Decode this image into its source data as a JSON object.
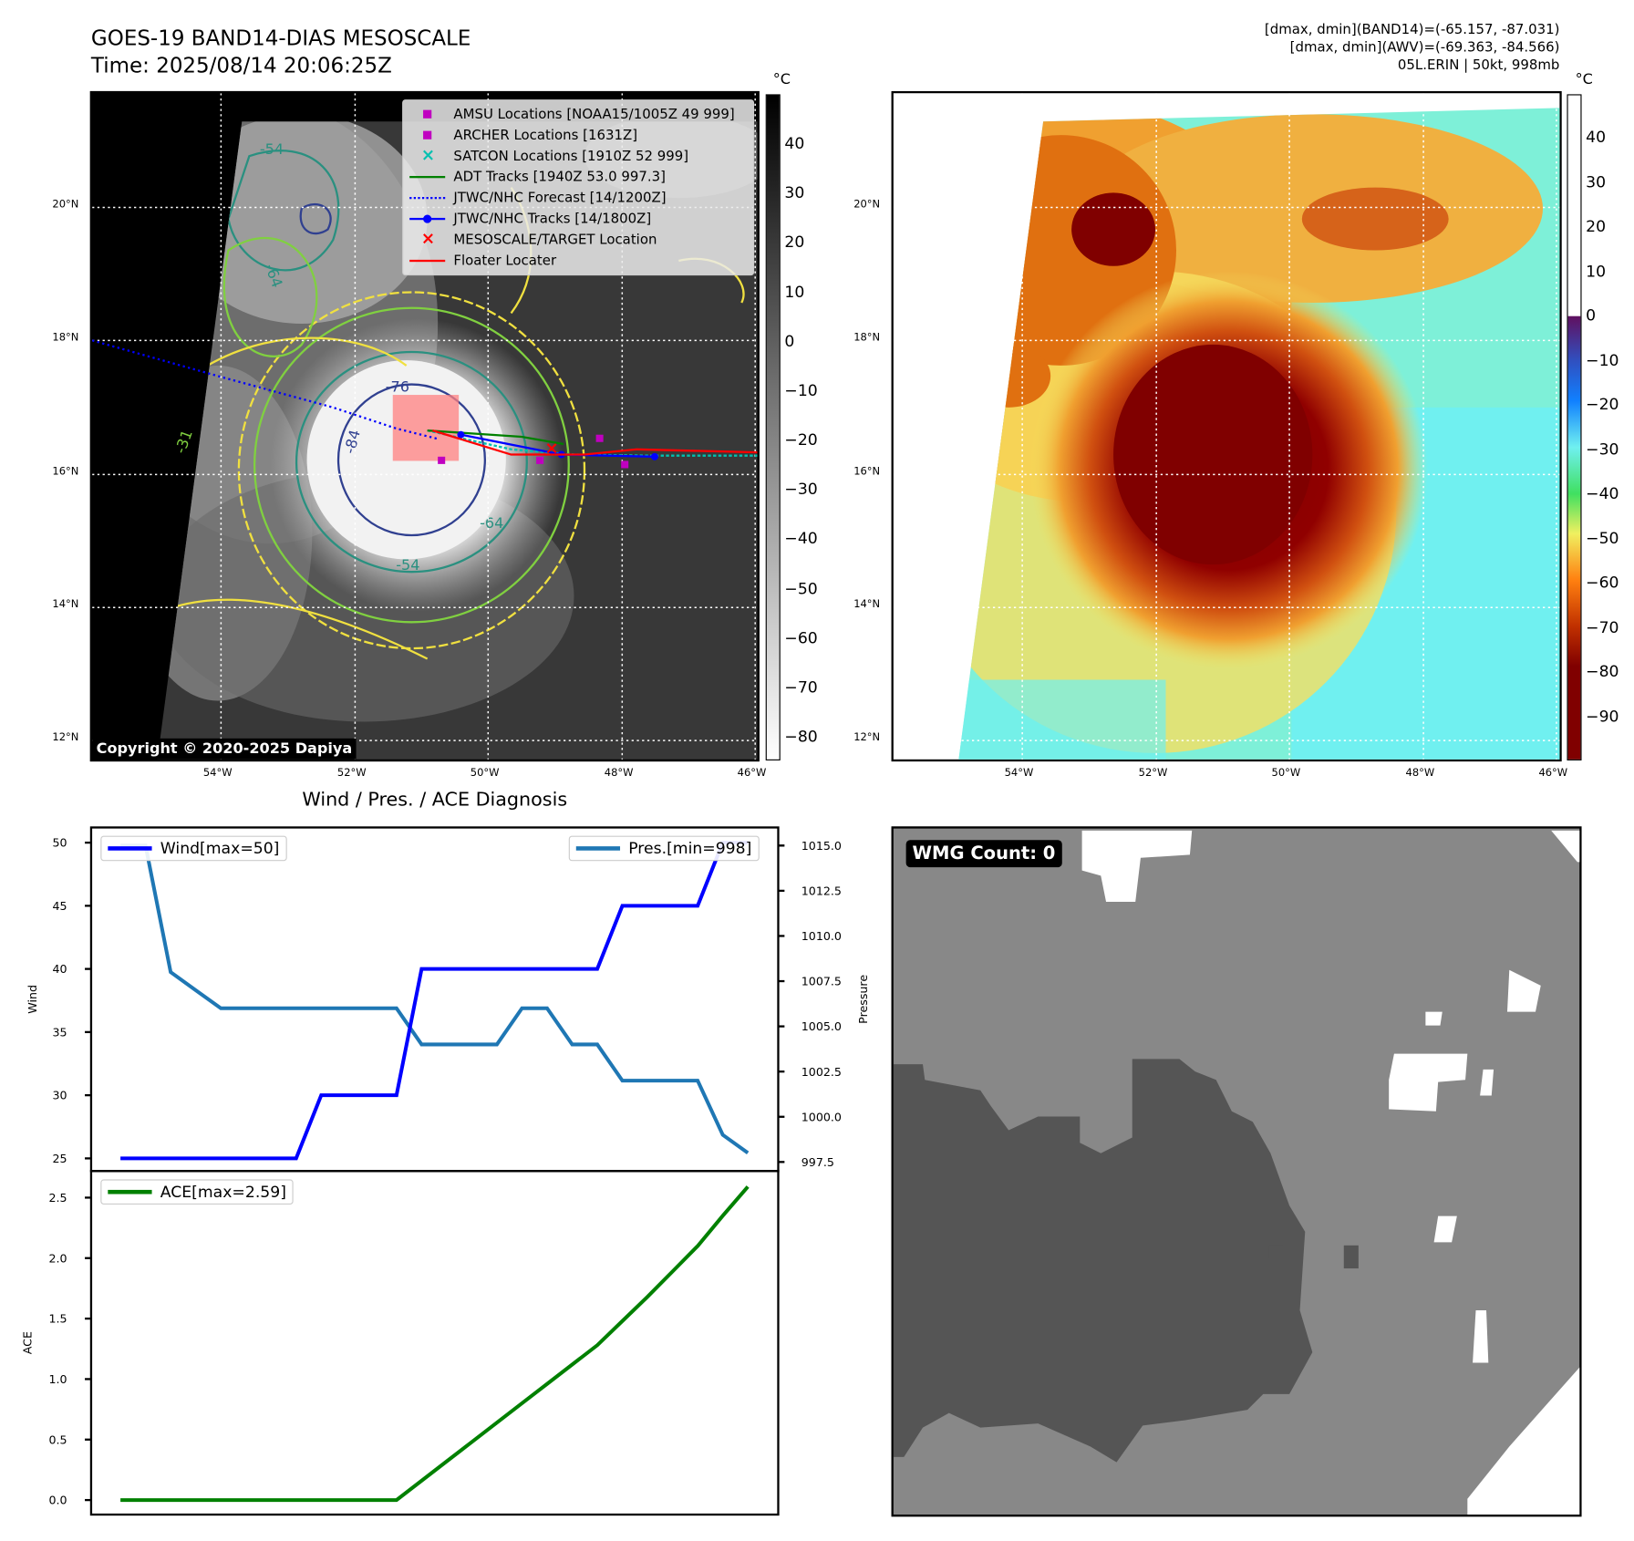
{
  "header": {
    "title": "GOES-19 BAND14-DIAS MESOSCALE",
    "time": "Time: 2025/08/14 20:06:25Z",
    "stats_band14": "[dmax, dmin](BAND14)=(-65.157, -87.031)",
    "stats_awv": "[dmax, dmin](AWV)=(-69.363, -84.566)",
    "storm": "05L.ERIN | 50kt, 998mb"
  },
  "map": {
    "lon_ticks": [
      "54°W",
      "52°W",
      "50°W",
      "48°W",
      "46°W"
    ],
    "lat_ticks": [
      "20°N",
      "18°N",
      "16°N",
      "14°N",
      "12°N"
    ],
    "copyright": "Copyright © 2020-2025 Dapiya",
    "contour_labels": [
      "-54",
      "-64",
      "-76",
      "-54",
      "-64",
      "-31",
      "-84"
    ],
    "legend": [
      {
        "label": "AMSU Locations [NOAA15/1005Z 49 999]",
        "symbol": "square",
        "color": "#c000c0"
      },
      {
        "label": "ARCHER Locations [1631Z]",
        "symbol": "square",
        "color": "#c000c0"
      },
      {
        "label": "SATCON Locations [1910Z 52 999]",
        "symbol": "x",
        "color": "#00c0b0"
      },
      {
        "label": "ADT Tracks [1940Z 53.0 997.3]",
        "symbol": "line",
        "color": "#008000"
      },
      {
        "label": "JTWC/NHC Forecast [14/1200Z]",
        "symbol": "dotted",
        "color": "#0000ff"
      },
      {
        "label": "JTWC/NHC Tracks [14/1800Z]",
        "symbol": "line-dot",
        "color": "#0000ff"
      },
      {
        "label": "MESOSCALE/TARGET Location",
        "symbol": "x",
        "color": "#ff0000"
      },
      {
        "label": "Floater Locater",
        "symbol": "line",
        "color": "#ff0000"
      }
    ],
    "colorbar1": {
      "unit": "°C",
      "ticks": [
        "40",
        "30",
        "20",
        "10",
        "0",
        "−10",
        "−20",
        "−30",
        "−40",
        "−50",
        "−60",
        "−70",
        "−80"
      ]
    },
    "colorbar2": {
      "unit": "°C",
      "ticks": [
        "40",
        "30",
        "20",
        "10",
        "0",
        "−10",
        "−20",
        "−30",
        "−40",
        "−50",
        "−60",
        "−70",
        "−80",
        "−90"
      ]
    }
  },
  "wmg": {
    "label": "WMG Count: 0"
  },
  "chart_data": [
    {
      "type": "line",
      "title": "Wind / Pres. / ACE Diagnosis",
      "x": [
        0,
        1,
        2,
        3,
        4,
        5,
        6,
        7,
        8,
        9,
        10,
        11,
        12,
        13,
        14,
        15,
        16,
        17,
        18,
        19,
        20,
        21,
        22,
        23,
        24,
        25
      ],
      "ylabel": "Wind",
      "y2label": "Pressure",
      "ylim": [
        24,
        51.2
      ],
      "y2lim": [
        997,
        1016
      ],
      "yticks": [
        "25",
        "30",
        "35",
        "40",
        "45",
        "50"
      ],
      "y2ticks": [
        "997.5",
        "1000.0",
        "1002.5",
        "1005.0",
        "1007.5",
        "1010.0",
        "1012.5",
        "1015.0"
      ],
      "series": [
        {
          "name": "Wind[max=50]",
          "color": "#0000ff",
          "axis": "left",
          "values": [
            25,
            25,
            25,
            25,
            25,
            25,
            25,
            25,
            30,
            30,
            30,
            30,
            40,
            40,
            40,
            40,
            40,
            40,
            40,
            40,
            45,
            45,
            45,
            45,
            50,
            50
          ]
        },
        {
          "name": "Pres.[min=998]",
          "color": "#1f77b4",
          "axis": "right",
          "values": [
            1015,
            1015,
            1008,
            1007,
            1006,
            1006,
            1006,
            1006,
            1006,
            1006,
            1006,
            1006,
            1004,
            1004,
            1004,
            1004,
            1006,
            1006,
            1004,
            1004,
            1002,
            1002,
            1002,
            1002,
            999,
            998
          ]
        }
      ]
    },
    {
      "type": "line",
      "ylabel": "ACE",
      "ylim": [
        -0.12,
        2.72
      ],
      "yticks": [
        "0.0",
        "0.5",
        "1.0",
        "1.5",
        "2.0",
        "2.5"
      ],
      "x": [
        0,
        1,
        2,
        3,
        4,
        5,
        6,
        7,
        8,
        9,
        10,
        11,
        12,
        13,
        14,
        15,
        16,
        17,
        18,
        19,
        20,
        21,
        22,
        23,
        24,
        25
      ],
      "series": [
        {
          "name": "ACE[max=2.59]",
          "color": "#008000",
          "values": [
            0,
            0,
            0,
            0,
            0,
            0,
            0,
            0,
            0,
            0,
            0,
            0,
            0.16,
            0.32,
            0.48,
            0.64,
            0.8,
            0.96,
            1.12,
            1.28,
            1.48,
            1.68,
            1.89,
            2.1,
            2.35,
            2.59
          ]
        }
      ]
    }
  ]
}
